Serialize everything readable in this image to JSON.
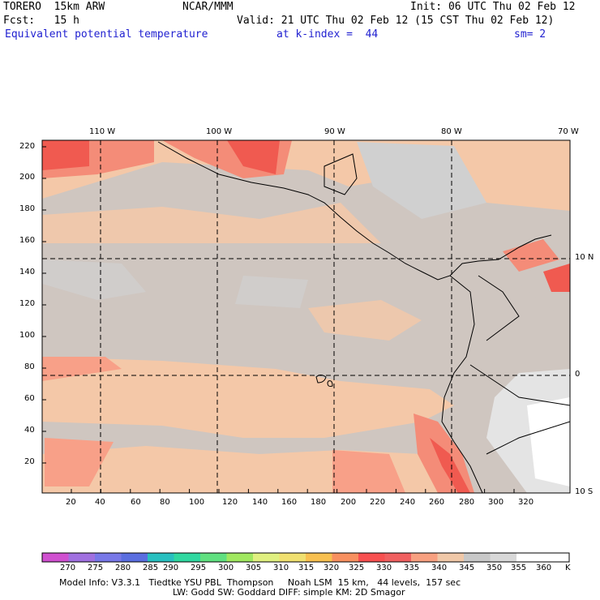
{
  "header": {
    "model": "TORERO  15km ARW",
    "org": "NCAR/MMM",
    "init": "Init: 06 UTC Thu 02 Feb 12",
    "fcst": "Fcst:   15 h",
    "valid": "Valid: 21 UTC Thu 02 Feb 12 (15 CST Thu 02 Feb 12)",
    "field": "Equivalent potential temperature",
    "level": "at k-index =  44",
    "smooth": "sm= 2"
  },
  "map": {
    "lon_labels": [
      "110 W",
      "100 W",
      "90 W",
      "80 W",
      "70 W"
    ],
    "lat_labels": [
      "10 N",
      "0",
      "10 S"
    ],
    "y_ticks": [
      "220",
      "200",
      "180",
      "160",
      "140",
      "120",
      "100",
      "80",
      "60",
      "40",
      "20"
    ],
    "x_ticks": [
      "20",
      "40",
      "60",
      "80",
      "100",
      "120",
      "140",
      "160",
      "180",
      "200",
      "220",
      "240",
      "260",
      "280",
      "300",
      "320"
    ],
    "grid_color": "#000000"
  },
  "colorbar": {
    "labels": [
      "270",
      "275",
      "280",
      "285",
      "290",
      "295",
      "300",
      "305",
      "310",
      "315",
      "320",
      "325",
      "330",
      "335",
      "340",
      "345",
      "350",
      "355",
      "360"
    ],
    "unit": "K",
    "colors": [
      "#d050d0",
      "#a070e0",
      "#7878e8",
      "#5a6ee0",
      "#28c0c0",
      "#30d8a0",
      "#60e080",
      "#a0e860",
      "#e0f080",
      "#f0e070",
      "#f8c050",
      "#f89060",
      "#f85050",
      "#f06060",
      "#f8a080",
      "#f0c8a8",
      "#c8c8c8",
      "#d8d8d8",
      "#ffffff"
    ]
  },
  "footer": {
    "line1": "Model Info: V3.3.1   Tiedtke YSU PBL  Thompson     Noah LSM  15 km,   44 levels,  157 sec",
    "line2": "LW: Godd SW: Goddard DIFF: simple KM: 2D Smagor"
  }
}
